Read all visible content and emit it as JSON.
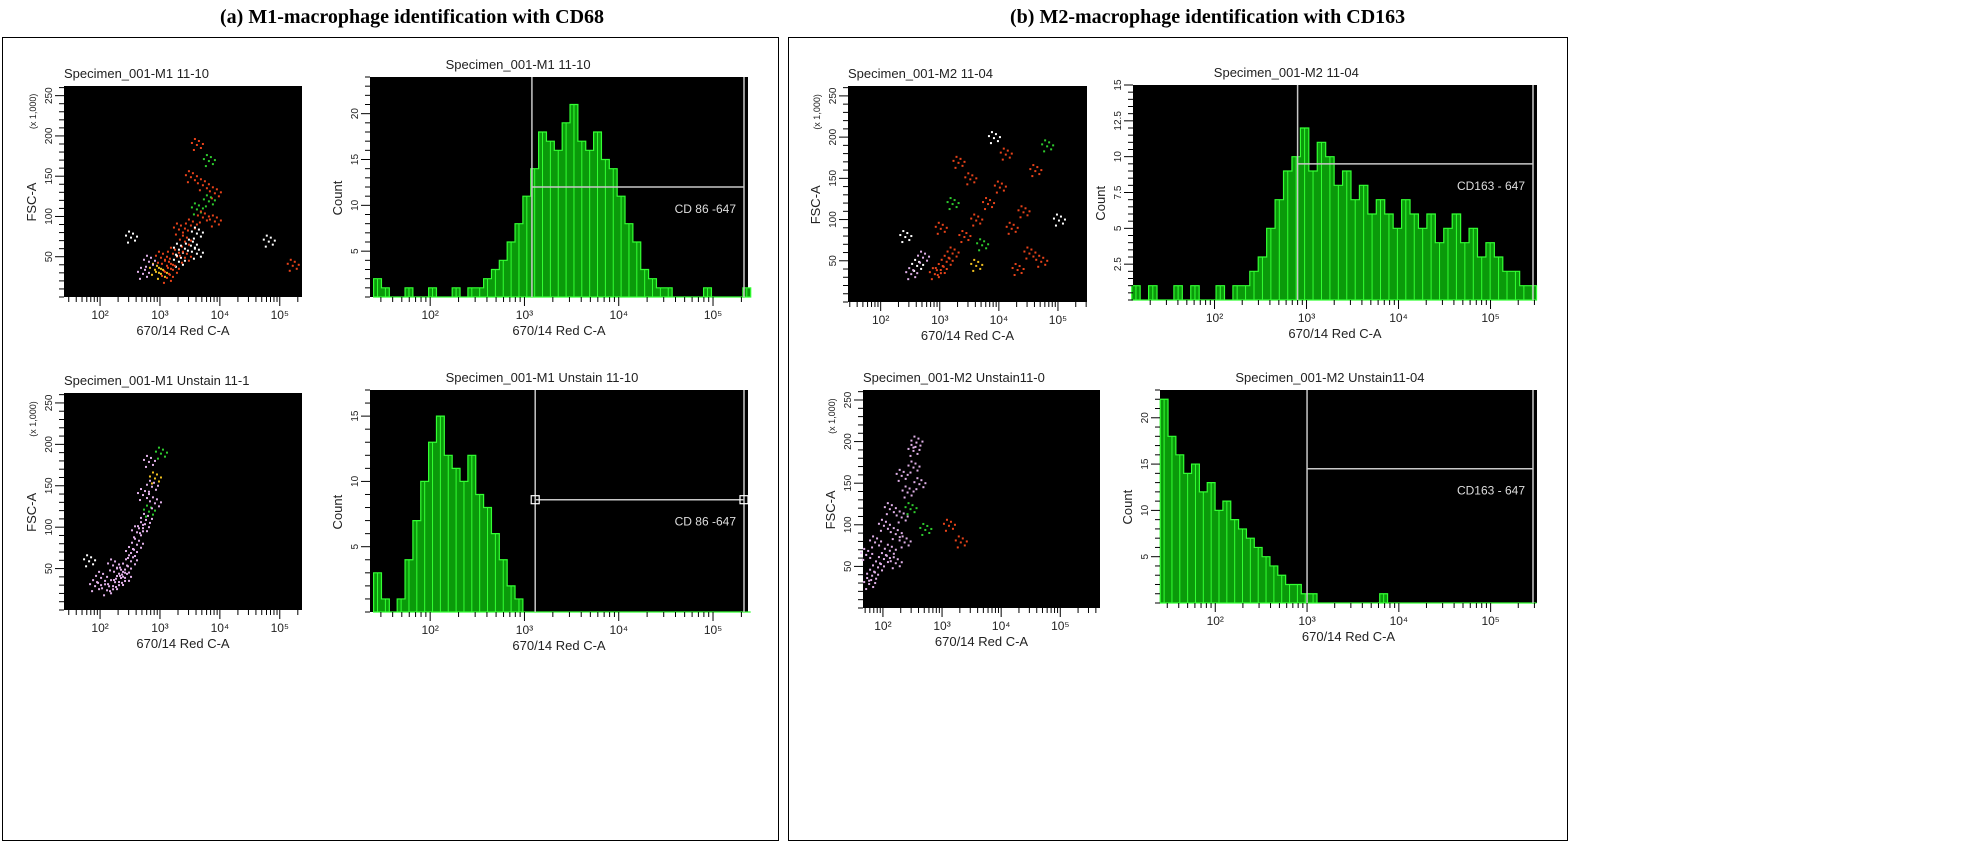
{
  "panels": [
    {
      "label": "(a) M1-macrophage identification with CD68"
    },
    {
      "label": "(b) M2-macrophage identification with CD163"
    }
  ],
  "colors": {
    "background": "#000000",
    "histogram_fill": "#0a9a0a",
    "histogram_line": "#33ff33",
    "gate": "#c8c8c8",
    "dot_palette": [
      "#e8431a",
      "#ffffff",
      "#2ecc2e",
      "#f0c020",
      "#e0b0e8"
    ]
  },
  "chart_data": [
    {
      "type": "scatter",
      "title": "Specimen_001-M1 11-10",
      "xlabel": "670/14 Red C-A",
      "ylabel": "FSC-A",
      "yunit": "(x 1,000)",
      "xscale": "log",
      "xlim": [
        25,
        235000
      ],
      "ylim": [
        0,
        262
      ],
      "xticks": [
        100,
        1000,
        10000,
        100000
      ],
      "yticks": [
        50,
        100,
        150,
        200,
        250
      ],
      "points": [
        [
          3.1,
          40,
          0
        ],
        [
          3.2,
          55,
          0
        ],
        [
          3.3,
          45,
          1
        ],
        [
          3.0,
          30,
          3
        ],
        [
          2.9,
          35,
          3
        ],
        [
          3.4,
          70,
          0
        ],
        [
          3.5,
          90,
          0
        ],
        [
          3.6,
          110,
          2
        ],
        [
          3.7,
          140,
          0
        ],
        [
          3.8,
          170,
          2
        ],
        [
          3.6,
          190,
          0
        ],
        [
          3.3,
          60,
          1
        ],
        [
          3.1,
          25,
          0
        ],
        [
          3.5,
          65,
          1
        ],
        [
          3.7,
          100,
          0
        ],
        [
          3.9,
          130,
          0
        ],
        [
          2.8,
          45,
          4
        ],
        [
          3.2,
          35,
          0
        ],
        [
          3.4,
          50,
          0
        ],
        [
          3.6,
          80,
          1
        ],
        [
          3.8,
          120,
          2
        ],
        [
          3.5,
          150,
          0
        ],
        [
          3.9,
          95,
          0
        ],
        [
          2.5,
          75,
          1
        ],
        [
          4.8,
          70,
          1
        ],
        [
          5.2,
          40,
          0
        ],
        [
          3.3,
          85,
          0
        ],
        [
          3.0,
          50,
          0
        ],
        [
          3.6,
          55,
          1
        ],
        [
          2.7,
          30,
          4
        ]
      ]
    },
    {
      "type": "histogram",
      "title": "Specimen_001-M1 11-10",
      "xlabel": "670/14 Red C-A",
      "ylabel": "Count",
      "xscale": "log",
      "xlim": [
        23,
        235000
      ],
      "ylim": [
        0,
        24
      ],
      "xticks": [
        100,
        1000,
        10000,
        100000
      ],
      "yticks": [
        5,
        10,
        15,
        20
      ],
      "gate": {
        "threshold": 1200,
        "upper": 230000,
        "level": 12,
        "label": "CD 86 -647",
        "handles": false
      },
      "bins_log10": [
        1.4,
        5.4
      ],
      "counts": [
        2,
        1,
        0,
        0,
        1,
        0,
        0,
        1,
        0,
        0,
        1,
        0,
        1,
        1,
        2,
        3,
        4,
        6,
        8,
        11,
        14,
        18,
        17,
        16,
        19,
        21,
        17,
        16,
        18,
        15,
        14,
        11,
        8,
        6,
        3,
        2,
        1,
        1,
        0,
        0,
        0,
        0,
        1,
        0,
        0,
        0,
        0,
        1
      ]
    },
    {
      "type": "scatter",
      "title": "Specimen_001-M1 Unstain 11-1",
      "xlabel": "670/14 Red C-A",
      "ylabel": "FSC-A",
      "yunit": "(x 1,000)",
      "xscale": "log",
      "xlim": [
        25,
        235000
      ],
      "ylim": [
        0,
        262
      ],
      "xticks": [
        100,
        1000,
        10000,
        100000
      ],
      "yticks": [
        50,
        100,
        150,
        200,
        250
      ],
      "points": [
        [
          2.1,
          25,
          4
        ],
        [
          2.2,
          30,
          4
        ],
        [
          2.3,
          35,
          4
        ],
        [
          2.0,
          40,
          4
        ],
        [
          2.4,
          50,
          4
        ],
        [
          2.5,
          60,
          4
        ],
        [
          2.3,
          45,
          4
        ],
        [
          2.6,
          80,
          4
        ],
        [
          2.7,
          100,
          4
        ],
        [
          2.8,
          120,
          2
        ],
        [
          2.7,
          140,
          4
        ],
        [
          2.9,
          160,
          3
        ],
        [
          3.0,
          190,
          2
        ],
        [
          2.8,
          180,
          4
        ],
        [
          2.2,
          55,
          4
        ],
        [
          2.5,
          70,
          4
        ],
        [
          2.6,
          95,
          4
        ],
        [
          2.9,
          130,
          4
        ],
        [
          1.9,
          30,
          4
        ],
        [
          2.4,
          40,
          4
        ],
        [
          2.75,
          110,
          4
        ],
        [
          2.85,
          150,
          4
        ],
        [
          1.8,
          60,
          1
        ]
      ]
    },
    {
      "type": "histogram",
      "title": "Specimen_001-M1 Unstain 11-10",
      "xlabel": "670/14 Red C-A",
      "ylabel": "Count",
      "xscale": "log",
      "xlim": [
        23,
        235000
      ],
      "ylim": [
        0,
        17
      ],
      "xticks": [
        100,
        1000,
        10000,
        100000
      ],
      "yticks": [
        5,
        10,
        15
      ],
      "gate": {
        "threshold": 1300,
        "upper": 230000,
        "level": 8.6,
        "label": "CD 86 -647",
        "handles": true
      },
      "bins_log10": [
        1.4,
        5.4
      ],
      "counts": [
        3,
        1,
        0,
        1,
        4,
        7,
        10,
        13,
        15,
        12,
        11,
        10,
        12,
        9,
        8,
        6,
        4,
        2,
        1,
        0,
        0,
        0,
        0,
        0,
        0,
        0,
        0,
        0,
        0,
        0,
        0,
        0,
        0,
        0,
        0,
        0,
        0,
        0,
        0,
        0,
        0,
        0,
        0,
        0,
        0,
        0,
        0,
        0
      ]
    },
    {
      "type": "scatter",
      "title": "Specimen_001-M2 11-04",
      "xlabel": "670/14 Red C-A",
      "ylabel": "FSC-A",
      "yunit": "(x 1,000)",
      "xscale": "log",
      "xlim": [
        28,
        310000
      ],
      "ylim": [
        0,
        262
      ],
      "xticks": [
        100,
        1000,
        10000,
        100000
      ],
      "yticks": [
        50,
        100,
        150,
        200,
        250
      ],
      "points": [
        [
          3.0,
          40,
          0
        ],
        [
          3.1,
          50,
          0
        ],
        [
          2.9,
          35,
          0
        ],
        [
          3.2,
          60,
          0
        ],
        [
          3.4,
          80,
          0
        ],
        [
          3.6,
          100,
          0
        ],
        [
          3.8,
          120,
          0
        ],
        [
          4.0,
          140,
          0
        ],
        [
          4.2,
          90,
          0
        ],
        [
          4.4,
          110,
          0
        ],
        [
          4.6,
          160,
          0
        ],
        [
          4.8,
          190,
          2
        ],
        [
          3.5,
          150,
          0
        ],
        [
          3.3,
          170,
          0
        ],
        [
          3.9,
          200,
          1
        ],
        [
          4.5,
          60,
          0
        ],
        [
          4.7,
          50,
          0
        ],
        [
          3.7,
          70,
          2
        ],
        [
          2.6,
          45,
          1
        ],
        [
          2.5,
          35,
          4
        ],
        [
          2.7,
          55,
          4
        ],
        [
          3.0,
          90,
          0
        ],
        [
          4.1,
          180,
          0
        ],
        [
          3.2,
          120,
          2
        ],
        [
          4.3,
          40,
          0
        ],
        [
          5.0,
          100,
          1
        ],
        [
          3.6,
          45,
          3
        ],
        [
          2.4,
          80,
          1
        ]
      ]
    },
    {
      "type": "histogram",
      "title": "Specimen_001-M2 11-04",
      "xlabel": "670/14 Red C-A",
      "ylabel": "Count",
      "xscale": "log",
      "xlim": [
        13,
        320000
      ],
      "ylim": [
        0,
        15
      ],
      "xticks": [
        100,
        1000,
        10000,
        100000
      ],
      "yticks": [
        2.5,
        5,
        7.5,
        10,
        12.5,
        15
      ],
      "gate": {
        "threshold": 800,
        "upper": 320000,
        "level": 9.5,
        "label": "CD163 - 647",
        "handles": false
      },
      "bins_log10": [
        1.1,
        5.5
      ],
      "counts": [
        1,
        0,
        1,
        0,
        0,
        1,
        0,
        1,
        0,
        0,
        1,
        0,
        1,
        1,
        2,
        3,
        5,
        7,
        9,
        10,
        12,
        9,
        11,
        10,
        8,
        9,
        7,
        8,
        6,
        7,
        6,
        5,
        7,
        6,
        5,
        6,
        4,
        5,
        6,
        4,
        5,
        3,
        4,
        3,
        2,
        2,
        1,
        1
      ]
    },
    {
      "type": "scatter",
      "title": "Specimen_001-M2 Unstain11-0",
      "xlabel": "670/14 Red C-A",
      "ylabel": "FSC-A",
      "yunit": "(x 1,000)",
      "xscale": "log",
      "xlim": [
        46,
        470000
      ],
      "ylim": [
        0,
        262
      ],
      "xticks": [
        100,
        1000,
        10000,
        100000
      ],
      "yticks": [
        50,
        100,
        150,
        200,
        250
      ],
      "points": [
        [
          1.8,
          40,
          4
        ],
        [
          1.9,
          50,
          4
        ],
        [
          2.0,
          60,
          4
        ],
        [
          2.1,
          70,
          4
        ],
        [
          1.75,
          30,
          4
        ],
        [
          2.2,
          90,
          4
        ],
        [
          2.3,
          110,
          4
        ],
        [
          2.4,
          140,
          4
        ],
        [
          2.5,
          170,
          4
        ],
        [
          2.55,
          200,
          4
        ],
        [
          2.3,
          160,
          4
        ],
        [
          2.1,
          120,
          4
        ],
        [
          2.0,
          100,
          4
        ],
        [
          1.85,
          80,
          4
        ],
        [
          2.45,
          120,
          2
        ],
        [
          2.2,
          55,
          4
        ],
        [
          1.7,
          65,
          4
        ],
        [
          2.35,
          80,
          4
        ],
        [
          2.5,
          190,
          4
        ],
        [
          2.6,
          150,
          4
        ],
        [
          3.1,
          100,
          0
        ],
        [
          3.3,
          80,
          0
        ],
        [
          2.7,
          95,
          2
        ]
      ]
    },
    {
      "type": "histogram",
      "title": "Specimen_001-M2 Unstain11-04",
      "xlabel": "670/14 Red C-A",
      "ylabel": "Count",
      "xscale": "log",
      "xlim": [
        25,
        320000
      ],
      "ylim": [
        0,
        23
      ],
      "xticks": [
        100,
        1000,
        10000,
        100000
      ],
      "yticks": [
        5,
        10,
        15,
        20
      ],
      "gate": {
        "threshold": 1000,
        "upper": 320000,
        "level": 14.5,
        "label": "CD163 - 647",
        "handles": false
      },
      "bins_log10": [
        1.4,
        5.5
      ],
      "counts": [
        22,
        18,
        16,
        14,
        15,
        12,
        13,
        10,
        11,
        9,
        8,
        7,
        6,
        5,
        4,
        3,
        2,
        2,
        1,
        1,
        0,
        0,
        0,
        0,
        0,
        0,
        0,
        0,
        1,
        0,
        0,
        0,
        0,
        0,
        0,
        0,
        0,
        0,
        0,
        0,
        0,
        0,
        0,
        0,
        0,
        0,
        0,
        0
      ]
    }
  ]
}
